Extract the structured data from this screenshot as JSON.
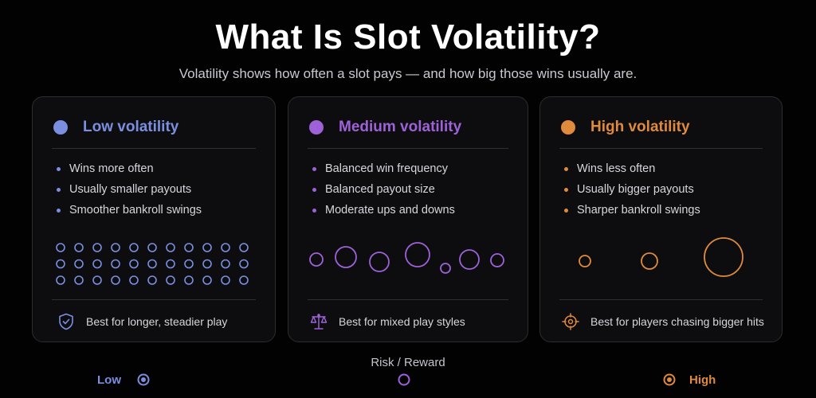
{
  "title": "What Is Slot Volatility?",
  "subtitle": "Volatility shows how often a slot pays — and how big those wins usually are.",
  "cards": [
    {
      "title": "Low volatility",
      "color": "#7a8fe0",
      "bullets": [
        "Wins more often",
        "Usually smaller payouts",
        "Smoother bankroll swings"
      ],
      "footer": "Best for longer, steadier play",
      "footer_icon": "shield-check-icon",
      "visual": "circle-grid-icon"
    },
    {
      "title": "Medium volatility",
      "color": "#9e62d8",
      "bullets": [
        "Balanced win frequency",
        "Balanced payout size",
        "Moderate ups and downs"
      ],
      "footer": "Best for mixed play styles",
      "footer_icon": "balance-scale-icon",
      "visual": "mixed-circles-icon"
    },
    {
      "title": "High volatility",
      "color": "#e08a3c",
      "bullets": [
        "Wins less often",
        "Usually bigger payouts",
        "Sharper bankroll swings"
      ],
      "footer": "Best for players chasing bigger hits",
      "footer_icon": "crosshair-target-icon",
      "visual": "large-circles-icon"
    }
  ],
  "scale": {
    "label": "Risk / Reward",
    "low": "Low",
    "high": "High",
    "low_color": "#7a8fe0",
    "high_color": "#e08a3c"
  }
}
